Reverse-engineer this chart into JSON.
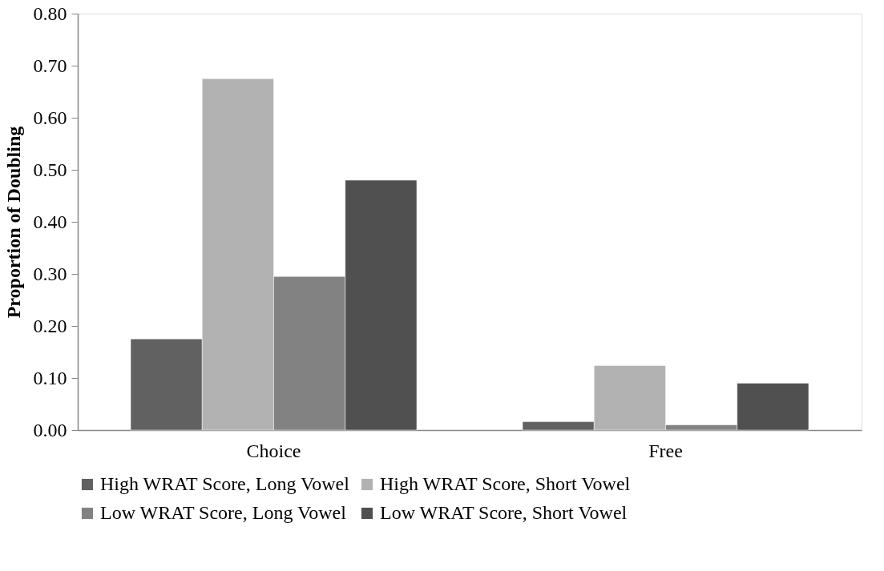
{
  "chart_data": {
    "type": "bar",
    "ylabel": "Proportion of Doubling",
    "categories": [
      "Choice",
      "Free"
    ],
    "series": [
      {
        "name": "High WRAT Score, Long Vowel",
        "color": "#616161",
        "values": [
          0.175,
          0.016
        ]
      },
      {
        "name": "High WRAT Score, Short Vowel",
        "color": "#b2b2b2",
        "values": [
          0.675,
          0.124
        ]
      },
      {
        "name": "Low WRAT Score, Long Vowel",
        "color": "#828282",
        "values": [
          0.295,
          0.01
        ]
      },
      {
        "name": "Low WRAT Score, Short Vowel",
        "color": "#505050",
        "values": [
          0.48,
          0.09
        ]
      }
    ],
    "ylim": [
      0,
      0.8
    ],
    "yticks": [
      {
        "value": 0,
        "label": "0.00"
      },
      {
        "value": 0.1,
        "label": "0.10"
      },
      {
        "value": 0.2,
        "label": "0.20"
      },
      {
        "value": 0.3,
        "label": "0.30"
      },
      {
        "value": 0.4,
        "label": "0.40"
      },
      {
        "value": 0.5,
        "label": "0.50"
      },
      {
        "value": 0.6,
        "label": "0.60"
      },
      {
        "value": 0.7,
        "label": "0.70"
      },
      {
        "value": 0.8,
        "label": "0.80"
      }
    ],
    "grid": false,
    "legend": "bottom"
  }
}
